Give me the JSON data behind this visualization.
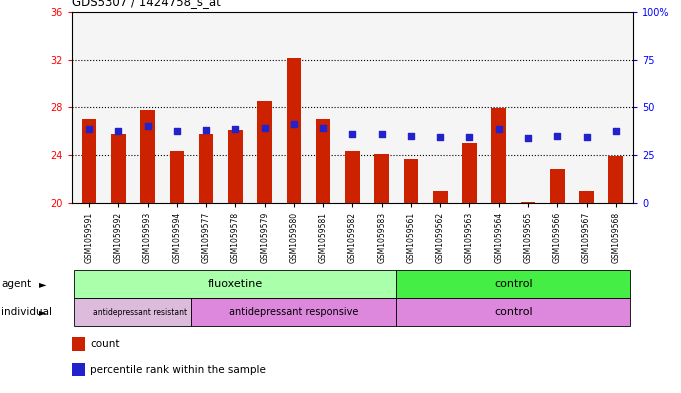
{
  "title": "GDS5307 / 1424758_s_at",
  "samples": [
    "GSM1059591",
    "GSM1059592",
    "GSM1059593",
    "GSM1059594",
    "GSM1059577",
    "GSM1059578",
    "GSM1059579",
    "GSM1059580",
    "GSM1059581",
    "GSM1059582",
    "GSM1059583",
    "GSM1059561",
    "GSM1059562",
    "GSM1059563",
    "GSM1059564",
    "GSM1059565",
    "GSM1059566",
    "GSM1059567",
    "GSM1059568"
  ],
  "bar_values": [
    27.0,
    25.8,
    27.8,
    24.3,
    25.8,
    26.1,
    28.5,
    32.1,
    27.0,
    24.3,
    24.1,
    23.7,
    21.0,
    25.0,
    27.9,
    20.1,
    22.8,
    21.0,
    23.9
  ],
  "blue_values": [
    26.2,
    26.0,
    26.4,
    26.0,
    26.1,
    26.2,
    26.3,
    26.6,
    26.3,
    25.8,
    25.8,
    25.6,
    25.5,
    25.5,
    26.2,
    25.4,
    25.6,
    25.5,
    26.0
  ],
  "ylim_left": [
    20,
    36
  ],
  "yticks_left": [
    20,
    24,
    28,
    32,
    36
  ],
  "yticks_right": [
    0,
    25,
    50,
    75,
    100
  ],
  "bar_color": "#cc2200",
  "blue_color": "#2222cc",
  "fluox_color": "#aaffaa",
  "ctrl_agent_color": "#44ee44",
  "resist_color": "#ddbbdd",
  "respond_color": "#dd88dd",
  "ctrl_indiv_color": "#dd88dd",
  "legend_count_color": "#cc2200",
  "legend_percentile_color": "#2222cc",
  "legend_count_label": "count",
  "legend_percentile_label": "percentile rank within the sample"
}
